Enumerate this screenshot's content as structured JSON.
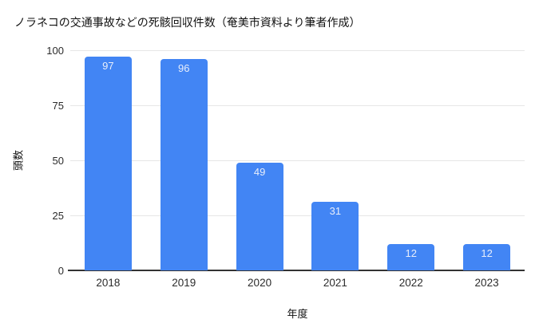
{
  "chart_data": {
    "type": "bar",
    "title": "ノラネコの交通事故などの死骸回収件数（奄美市資料より筆者作成）",
    "categories": [
      "2018",
      "2019",
      "2020",
      "2021",
      "2022",
      "2023"
    ],
    "values": [
      97,
      96,
      49,
      31,
      12,
      12
    ],
    "xlabel": "年度",
    "ylabel": "頭数",
    "ylim": [
      0,
      100
    ],
    "yticks": [
      0,
      25,
      50,
      75,
      100
    ],
    "grid": true,
    "legend": "none",
    "colors": {
      "bar": "#4285F4",
      "data_label": "#E8EEFB",
      "gridline": "#E6E6E6",
      "baseline": "#333333",
      "tick_label": "#2b2b2b",
      "title": "#111111",
      "axis_title": "#111111",
      "background": "#ffffff"
    }
  }
}
